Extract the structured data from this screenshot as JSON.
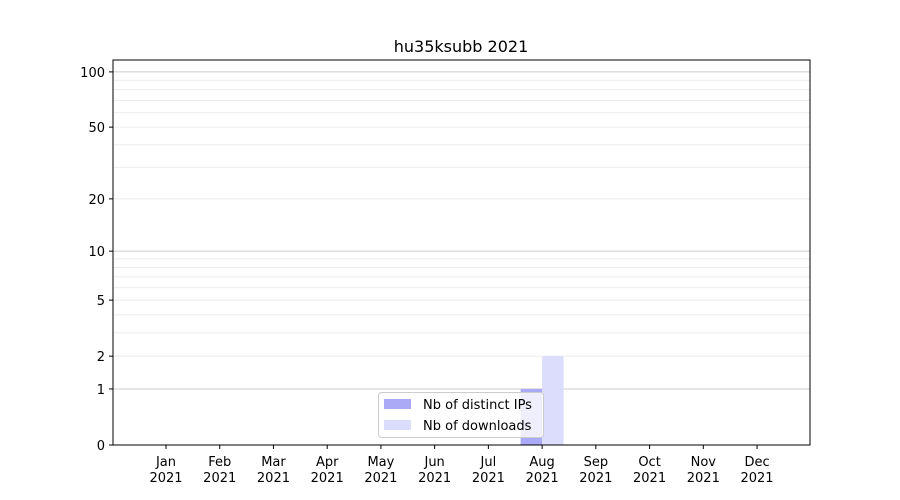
{
  "chart_data": {
    "type": "bar",
    "title": "hu35ksubb 2021",
    "xlabel": "",
    "ylabel": "",
    "y_scale": "log(1+y)",
    "ylim": [
      0,
      116
    ],
    "yticks": [
      0,
      1,
      2,
      5,
      10,
      20,
      50,
      100
    ],
    "ytick_labels": [
      "0",
      "1",
      "2",
      "5",
      "10",
      "20",
      "50",
      "100"
    ],
    "grid": true,
    "categories": [
      "Jan\n2021",
      "Feb\n2021",
      "Mar\n2021",
      "Apr\n2021",
      "May\n2021",
      "Jun\n2021",
      "Jul\n2021",
      "Aug\n2021",
      "Sep\n2021",
      "Oct\n2021",
      "Nov\n2021",
      "Dec\n2021"
    ],
    "month_labels": [
      "Jan",
      "Feb",
      "Mar",
      "Apr",
      "May",
      "Jun",
      "Jul",
      "Aug",
      "Sep",
      "Oct",
      "Nov",
      "Dec"
    ],
    "year_label": "2021",
    "series": [
      {
        "name": "Nb of distinct IPs",
        "color": "#aaaaf6",
        "values": [
          0,
          0,
          0,
          0,
          0,
          0,
          0,
          1,
          0,
          0,
          0,
          0
        ]
      },
      {
        "name": "Nb of downloads",
        "color": "#dcdcfc",
        "values": [
          0,
          0,
          0,
          0,
          0,
          0,
          0,
          2,
          0,
          0,
          0,
          0
        ]
      }
    ],
    "legend_position": "bottom-center"
  }
}
